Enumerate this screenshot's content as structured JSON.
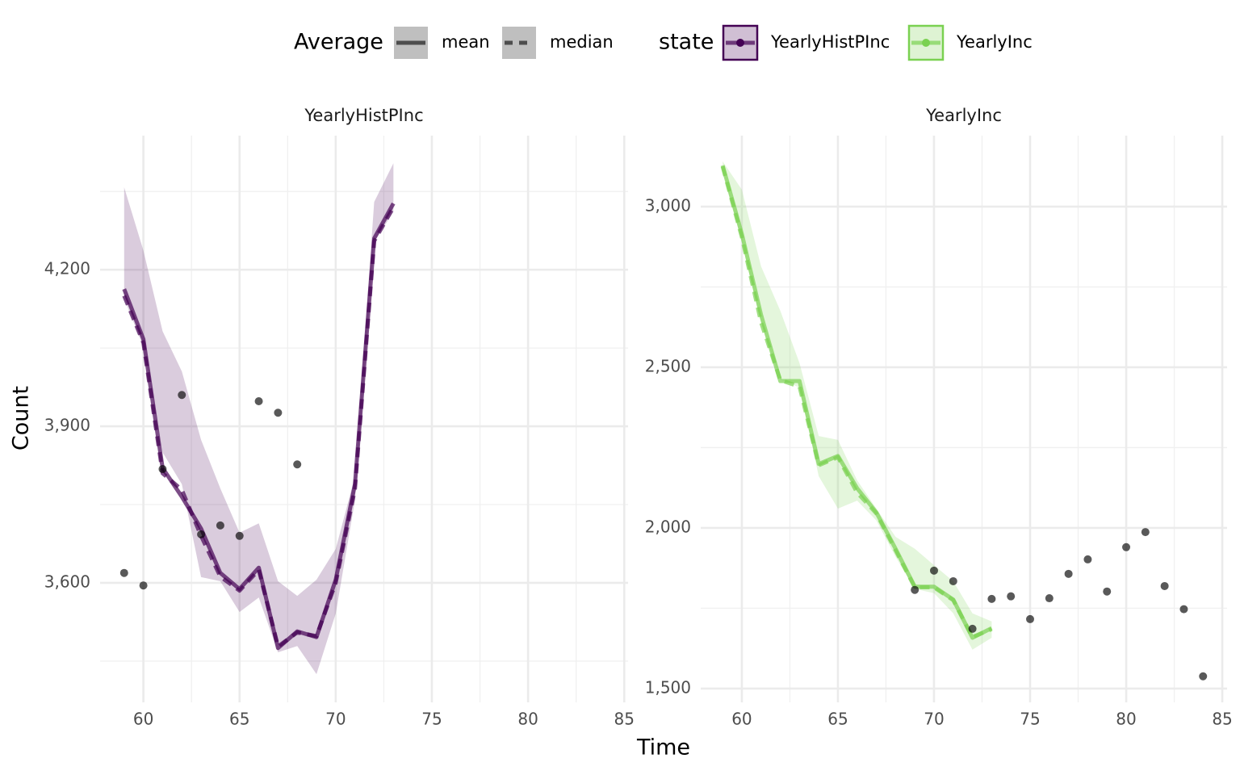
{
  "chart_data": [
    {
      "type": "line",
      "title": "YearlyHistPInc",
      "color": "#440154",
      "x": [
        59,
        60,
        61,
        62,
        63,
        64,
        65,
        66,
        67,
        68,
        69,
        70,
        71,
        72,
        73
      ],
      "series": [
        {
          "name": "mean",
          "dash": false,
          "values": [
            4163,
            4067,
            3820,
            3765,
            3704,
            3619,
            3588,
            3629,
            3475,
            3507,
            3496,
            3606,
            3789,
            4260,
            4327
          ]
        },
        {
          "name": "median",
          "dash": true,
          "values": [
            4150,
            4060,
            3810,
            3778,
            3690,
            3612,
            3585,
            3625,
            3478,
            3505,
            3498,
            3600,
            3780,
            4255,
            4320
          ]
        }
      ],
      "band": {
        "upper": [
          4358,
          4237,
          4082,
          4005,
          3874,
          3781,
          3696,
          3714,
          3603,
          3575,
          3606,
          3665,
          3804,
          4330,
          4404
        ],
        "lower": [
          4145,
          4052,
          3850,
          3789,
          3611,
          3603,
          3544,
          3572,
          3467,
          3479,
          3425,
          3541,
          3758,
          4253,
          4311
        ]
      },
      "points": {
        "x": [
          59,
          60,
          61,
          62,
          63,
          64,
          65,
          66,
          67,
          68
        ],
        "y": [
          3619,
          3595,
          3818,
          3960,
          3693,
          3710,
          3690,
          3948,
          3926,
          3827
        ]
      },
      "xlim": [
        57.75,
        85.2
      ],
      "xticks": [
        60,
        65,
        70,
        75,
        80,
        85
      ],
      "xminor_ticks": [
        62.5,
        67.5,
        72.5,
        77.5,
        82.5
      ],
      "ylim": [
        3371,
        4457
      ],
      "yticks": [
        {
          "value": 3600,
          "label": "3,600"
        },
        {
          "value": 3900,
          "label": "3,900"
        },
        {
          "value": 4200,
          "label": "4,200"
        }
      ],
      "yminor_ticks": [
        3450,
        3750,
        4050,
        4350
      ],
      "grid": true
    },
    {
      "type": "line",
      "title": "YearlyInc",
      "color": "#7AD151",
      "x": [
        59,
        60,
        61,
        62,
        63,
        64,
        65,
        66,
        67,
        68,
        69,
        70,
        71,
        72,
        73
      ],
      "series": [
        {
          "name": "mean",
          "dash": false,
          "values": [
            3128,
            2915,
            2663,
            2457,
            2457,
            2199,
            2224,
            2123,
            2048,
            1935,
            1817,
            1817,
            1777,
            1658,
            1688
          ]
        },
        {
          "name": "median",
          "dash": true,
          "values": [
            3125,
            2905,
            2640,
            2460,
            2440,
            2195,
            2220,
            2110,
            2045,
            1930,
            1815,
            1815,
            1775,
            1660,
            1685
          ]
        }
      ],
      "band": {
        "upper": [
          3141,
          3053,
          2814,
          2676,
          2513,
          2286,
          2274,
          2148,
          2060,
          1972,
          1935,
          1884,
          1834,
          1734,
          1709
        ],
        "lower": [
          3116,
          2889,
          2638,
          2462,
          2437,
          2161,
          2060,
          2085,
          2023,
          1910,
          1810,
          1797,
          1734,
          1621,
          1658
        ]
      },
      "points": {
        "x": [
          69,
          70,
          71,
          72,
          73,
          74,
          75,
          76,
          77,
          78,
          79,
          80,
          81,
          82,
          83,
          84
        ],
        "y": [
          1807,
          1867,
          1834,
          1686,
          1779,
          1787,
          1716,
          1781,
          1857,
          1902,
          1802,
          1940,
          1987,
          1819,
          1747,
          1538
        ]
      },
      "xlim": [
        57.86,
        85.25
      ],
      "xticks": [
        60,
        65,
        70,
        75,
        80,
        85
      ],
      "xminor_ticks": [
        62.5,
        67.5,
        72.5,
        77.5,
        82.5
      ],
      "ylim": [
        1457,
        3221
      ],
      "yticks": [
        {
          "value": 1500,
          "label": "1,500"
        },
        {
          "value": 2000,
          "label": "2,000"
        },
        {
          "value": 2500,
          "label": "2,500"
        },
        {
          "value": 3000,
          "label": "3,000"
        }
      ],
      "yminor_ticks": [
        1750,
        2250,
        2750
      ],
      "grid": true
    }
  ],
  "legend": {
    "groups": [
      {
        "title": "Average",
        "items": [
          "mean",
          "median"
        ]
      },
      {
        "title": "state",
        "items": [
          "YearlyHistPInc",
          "YearlyInc"
        ]
      }
    ]
  },
  "xlabel": "Time",
  "ylabel": "Count"
}
